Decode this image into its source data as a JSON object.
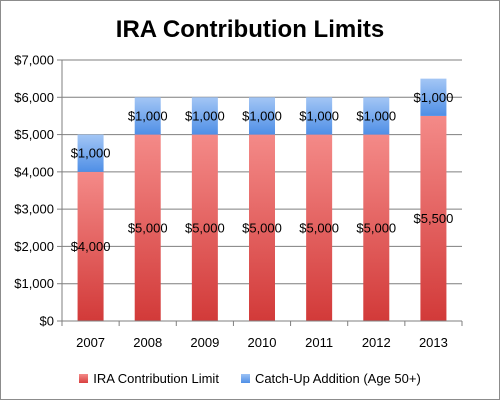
{
  "chart_data": {
    "type": "bar",
    "stacked": true,
    "title": "IRA Contribution Limits",
    "categories": [
      "2007",
      "2008",
      "2009",
      "2010",
      "2011",
      "2012",
      "2013"
    ],
    "series": [
      {
        "name": "IRA Contribution Limit",
        "values": [
          4000,
          5000,
          5000,
          5000,
          5000,
          5000,
          5500
        ],
        "labels": [
          "$4,000",
          "$5,000",
          "$5,000",
          "$5,000",
          "$5,000",
          "$5,000",
          "$5,500"
        ],
        "color_top": "#f48a88",
        "color_bottom": "#d23a39"
      },
      {
        "name": "Catch-Up Addition (Age 50+)",
        "values": [
          1000,
          1000,
          1000,
          1000,
          1000,
          1000,
          1000
        ],
        "labels": [
          "$1,000",
          "$1,000",
          "$1,000",
          "$1,000",
          "$1,000",
          "$1,000",
          "$1,000"
        ],
        "color_top": "#a3c6f5",
        "color_bottom": "#4f8fe6"
      }
    ],
    "ylim": [
      0,
      7000
    ],
    "yticks": [
      0,
      1000,
      2000,
      3000,
      4000,
      5000,
      6000,
      7000
    ],
    "ytick_labels": [
      "$0",
      "$1,000",
      "$2,000",
      "$3,000",
      "$4,000",
      "$5,000",
      "$6,000",
      "$7,000"
    ],
    "grid": true,
    "legend_position": "bottom"
  }
}
